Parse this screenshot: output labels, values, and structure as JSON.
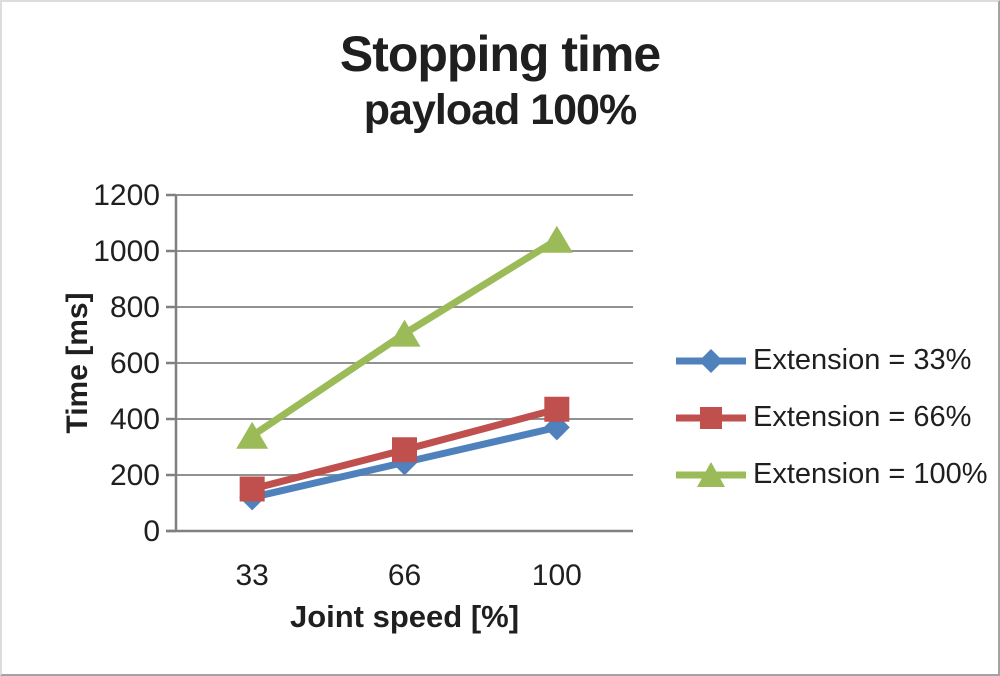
{
  "chart_data": {
    "type": "line",
    "title": "Stopping time",
    "subtitle": "payload 100%",
    "xlabel": "Joint speed [%]",
    "ylabel": "Time [ms]",
    "categories": [
      "33",
      "66",
      "100"
    ],
    "series": [
      {
        "name": "Extension = 33%",
        "color": "#4F81BD",
        "marker": "diamond",
        "values": [
          120,
          245,
          370
        ]
      },
      {
        "name": "Extension = 66%",
        "color": "#C0504D",
        "marker": "square",
        "values": [
          150,
          290,
          435
        ]
      },
      {
        "name": "Extension = 100%",
        "color": "#9BBB59",
        "marker": "triangle",
        "values": [
          340,
          705,
          1040
        ]
      }
    ],
    "ylim": [
      0,
      1200
    ],
    "y_tick_step": 200,
    "y_tick_labels": [
      "0",
      "200",
      "400",
      "600",
      "800",
      "1000",
      "1200"
    ],
    "grid": true,
    "legend_position": "right",
    "gridline_color": "#919191",
    "axis_color": "#808080",
    "text_color": "#1f1f1f"
  }
}
